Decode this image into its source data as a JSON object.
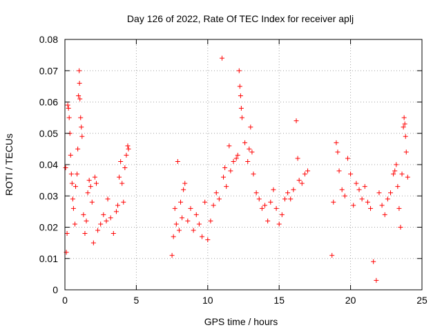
{
  "chart_data": {
    "type": "scatter",
    "title": "Day 126 of 2022, Rate Of TEC Index for receiver aplj",
    "xlabel": "GPS time / hours",
    "ylabel": "ROTI / TECUs",
    "xlim": [
      0,
      25
    ],
    "ylim": [
      0,
      0.08
    ],
    "x_ticks": [
      "0",
      "5",
      "10",
      "15",
      "20",
      "25"
    ],
    "y_ticks": [
      "0",
      "0.01",
      "0.02",
      "0.03",
      "0.04",
      "0.05",
      "0.06",
      "0.07",
      "0.08"
    ],
    "grid": true,
    "marker": "+",
    "marker_color": "#ff0000",
    "series": [
      {
        "name": "",
        "points": [
          [
            0.05,
            0.039
          ],
          [
            0.1,
            0.012
          ],
          [
            0.15,
            0.018
          ],
          [
            0.2,
            0.059
          ],
          [
            0.25,
            0.058
          ],
          [
            0.3,
            0.055
          ],
          [
            0.35,
            0.05
          ],
          [
            0.4,
            0.043
          ],
          [
            0.45,
            0.037
          ],
          [
            0.5,
            0.034
          ],
          [
            0.55,
            0.029
          ],
          [
            0.6,
            0.026
          ],
          [
            0.7,
            0.021
          ],
          [
            0.75,
            0.033
          ],
          [
            0.85,
            0.037
          ],
          [
            0.9,
            0.045
          ],
          [
            0.95,
            0.062
          ],
          [
            1.0,
            0.07
          ],
          [
            1.02,
            0.066
          ],
          [
            1.05,
            0.061
          ],
          [
            1.1,
            0.055
          ],
          [
            1.15,
            0.052
          ],
          [
            1.2,
            0.049
          ],
          [
            1.3,
            0.024
          ],
          [
            1.4,
            0.018
          ],
          [
            1.5,
            0.022
          ],
          [
            1.6,
            0.031
          ],
          [
            1.7,
            0.035
          ],
          [
            1.8,
            0.033
          ],
          [
            1.9,
            0.028
          ],
          [
            2.0,
            0.015
          ],
          [
            2.1,
            0.036
          ],
          [
            2.2,
            0.034
          ],
          [
            2.3,
            0.019
          ],
          [
            2.5,
            0.021
          ],
          [
            2.7,
            0.024
          ],
          [
            2.9,
            0.022
          ],
          [
            3.0,
            0.029
          ],
          [
            3.2,
            0.023
          ],
          [
            3.4,
            0.018
          ],
          [
            3.6,
            0.025
          ],
          [
            3.7,
            0.027
          ],
          [
            3.8,
            0.036
          ],
          [
            3.9,
            0.041
          ],
          [
            4.0,
            0.034
          ],
          [
            4.1,
            0.028
          ],
          [
            4.2,
            0.039
          ],
          [
            4.3,
            0.043
          ],
          [
            4.4,
            0.046
          ],
          [
            4.45,
            0.045
          ],
          [
            7.5,
            0.011
          ],
          [
            7.6,
            0.017
          ],
          [
            7.7,
            0.026
          ],
          [
            7.8,
            0.021
          ],
          [
            7.9,
            0.041
          ],
          [
            8.0,
            0.019
          ],
          [
            8.1,
            0.028
          ],
          [
            8.2,
            0.023
          ],
          [
            8.3,
            0.032
          ],
          [
            8.4,
            0.034
          ],
          [
            8.6,
            0.022
          ],
          [
            8.8,
            0.026
          ],
          [
            9.0,
            0.019
          ],
          [
            9.2,
            0.024
          ],
          [
            9.4,
            0.021
          ],
          [
            9.6,
            0.017
          ],
          [
            9.8,
            0.028
          ],
          [
            10.0,
            0.016
          ],
          [
            10.2,
            0.022
          ],
          [
            10.4,
            0.027
          ],
          [
            10.6,
            0.031
          ],
          [
            10.8,
            0.029
          ],
          [
            11.0,
            0.074
          ],
          [
            11.1,
            0.036
          ],
          [
            11.2,
            0.039
          ],
          [
            11.3,
            0.033
          ],
          [
            11.5,
            0.046
          ],
          [
            11.6,
            0.038
          ],
          [
            11.8,
            0.041
          ],
          [
            12.0,
            0.042
          ],
          [
            12.1,
            0.043
          ],
          [
            12.2,
            0.07
          ],
          [
            12.25,
            0.065
          ],
          [
            12.3,
            0.062
          ],
          [
            12.35,
            0.058
          ],
          [
            12.4,
            0.055
          ],
          [
            12.6,
            0.047
          ],
          [
            12.8,
            0.041
          ],
          [
            12.9,
            0.045
          ],
          [
            13.0,
            0.052
          ],
          [
            13.1,
            0.044
          ],
          [
            13.2,
            0.037
          ],
          [
            13.4,
            0.031
          ],
          [
            13.6,
            0.029
          ],
          [
            13.8,
            0.026
          ],
          [
            14.0,
            0.027
          ],
          [
            14.2,
            0.022
          ],
          [
            14.4,
            0.028
          ],
          [
            14.6,
            0.032
          ],
          [
            14.8,
            0.026
          ],
          [
            15.0,
            0.021
          ],
          [
            15.2,
            0.024
          ],
          [
            15.4,
            0.029
          ],
          [
            15.6,
            0.031
          ],
          [
            15.8,
            0.029
          ],
          [
            16.0,
            0.032
          ],
          [
            16.2,
            0.054
          ],
          [
            16.3,
            0.042
          ],
          [
            16.4,
            0.035
          ],
          [
            16.6,
            0.034
          ],
          [
            16.8,
            0.037
          ],
          [
            17.0,
            0.038
          ],
          [
            18.7,
            0.011
          ],
          [
            18.8,
            0.028
          ],
          [
            19.0,
            0.047
          ],
          [
            19.1,
            0.044
          ],
          [
            19.2,
            0.038
          ],
          [
            19.4,
            0.032
          ],
          [
            19.6,
            0.03
          ],
          [
            19.8,
            0.042
          ],
          [
            20.0,
            0.037
          ],
          [
            20.2,
            0.027
          ],
          [
            20.4,
            0.034
          ],
          [
            20.6,
            0.032
          ],
          [
            20.8,
            0.029
          ],
          [
            21.0,
            0.033
          ],
          [
            21.2,
            0.028
          ],
          [
            21.4,
            0.026
          ],
          [
            21.6,
            0.009
          ],
          [
            21.8,
            0.003
          ],
          [
            22.0,
            0.031
          ],
          [
            22.2,
            0.027
          ],
          [
            22.4,
            0.024
          ],
          [
            22.6,
            0.029
          ],
          [
            22.8,
            0.031
          ],
          [
            23.0,
            0.037
          ],
          [
            23.1,
            0.038
          ],
          [
            23.2,
            0.04
          ],
          [
            23.3,
            0.033
          ],
          [
            23.4,
            0.026
          ],
          [
            23.5,
            0.02
          ],
          [
            23.6,
            0.037
          ],
          [
            23.7,
            0.052
          ],
          [
            23.75,
            0.055
          ],
          [
            23.8,
            0.053
          ],
          [
            23.85,
            0.049
          ],
          [
            23.9,
            0.044
          ],
          [
            24.0,
            0.036
          ]
        ]
      }
    ]
  }
}
